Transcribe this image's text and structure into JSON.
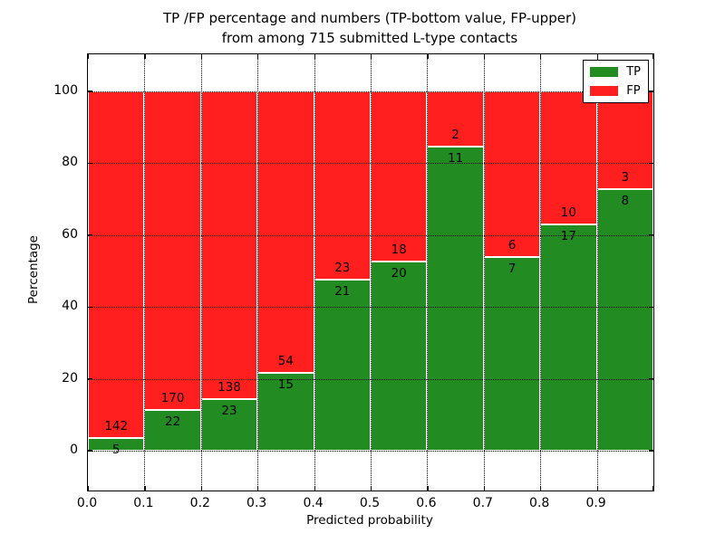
{
  "figure": {
    "title_line1": "TP /FP percentage and numbers (TP-bottom value, FP-upper)",
    "title_line2": "from among 715 submitted L-type contacts"
  },
  "chart_data": {
    "type": "bar",
    "stacked": true,
    "normalized_to_percent": true,
    "title": "TP /FP percentage and numbers (TP-bottom value, FP-upper)\nfrom among 715 submitted L-type contacts",
    "xlabel": "Predicted probability",
    "ylabel": "Percentage",
    "total_contacts": 715,
    "bin_width": 0.1,
    "x_tick_labels": [
      "0.0",
      "0.1",
      "0.2",
      "0.3",
      "0.4",
      "0.5",
      "0.6",
      "0.7",
      "0.8",
      "0.9"
    ],
    "y_ticks": [
      0,
      20,
      40,
      60,
      80,
      100
    ],
    "xlim": [
      0.0,
      1.0
    ],
    "ylim": [
      -11,
      110
    ],
    "grid": "dotted",
    "legend_position": "upper right",
    "series": [
      {
        "name": "TP",
        "color": "#228b22",
        "counts": [
          5,
          22,
          23,
          15,
          21,
          20,
          11,
          7,
          17,
          8
        ]
      },
      {
        "name": "FP",
        "color": "#ff1f1f",
        "counts": [
          142,
          170,
          138,
          54,
          23,
          18,
          2,
          6,
          10,
          3
        ]
      }
    ],
    "tp_percent_per_bin": [
      3.4,
      11.5,
      14.3,
      21.7,
      47.7,
      52.6,
      84.6,
      53.8,
      63.0,
      72.7
    ]
  }
}
